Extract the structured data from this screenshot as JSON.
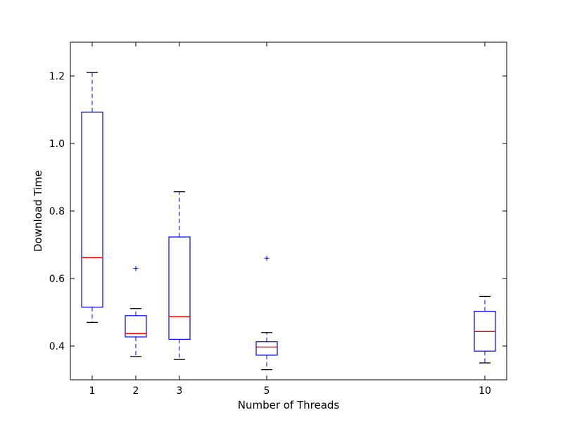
{
  "chart_data": {
    "type": "boxplot",
    "xlabel": "Number of Threads",
    "ylabel": "Download Time",
    "xlim": [
      0.5,
      10.5
    ],
    "ylim": [
      0.3,
      1.3
    ],
    "xticks": [
      1,
      2,
      3,
      5,
      10
    ],
    "yticks": [
      0.4,
      0.6,
      0.8,
      1.0,
      1.2
    ],
    "ytick_labels": [
      "0.4",
      "0.6",
      "0.8",
      "1.0",
      "1.2"
    ],
    "grid": false,
    "colors": {
      "box": "#0000ff",
      "median": "#ff0000",
      "whisker": "#0000ff",
      "cap": "#000000",
      "flier": "#0000ff"
    },
    "boxes": [
      {
        "x": 1,
        "whisker_low": 0.47,
        "q1": 0.515,
        "median": 0.662,
        "q3": 1.093,
        "whisker_high": 1.21,
        "fliers": []
      },
      {
        "x": 2,
        "whisker_low": 0.369,
        "q1": 0.427,
        "median": 0.437,
        "q3": 0.49,
        "whisker_high": 0.511,
        "fliers": [
          0.63
        ]
      },
      {
        "x": 3,
        "whisker_low": 0.36,
        "q1": 0.42,
        "median": 0.487,
        "q3": 0.723,
        "whisker_high": 0.857,
        "fliers": []
      },
      {
        "x": 5,
        "whisker_low": 0.33,
        "q1": 0.373,
        "median": 0.397,
        "q3": 0.413,
        "whisker_high": 0.44,
        "fliers": [
          0.66
        ]
      },
      {
        "x": 10,
        "whisker_low": 0.35,
        "q1": 0.385,
        "median": 0.443,
        "q3": 0.503,
        "whisker_high": 0.547,
        "fliers": []
      }
    ]
  }
}
